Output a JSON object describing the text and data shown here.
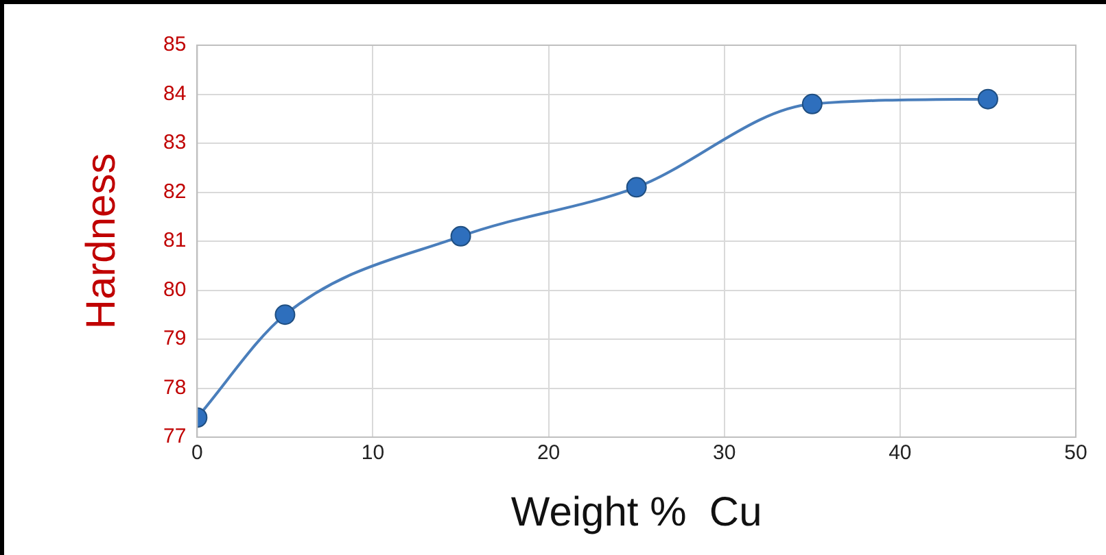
{
  "chart_data": {
    "type": "line",
    "xlabel": "Weight %  Cu",
    "ylabel": "Hardness",
    "x": [
      0,
      5,
      15,
      25,
      35,
      45
    ],
    "series": [
      {
        "color": "#4a7ebb",
        "values": [
          77.4,
          79.5,
          81.1,
          82.1,
          83.8,
          83.9
        ]
      }
    ],
    "xlim": [
      0,
      50
    ],
    "xticks": [
      0,
      10,
      20,
      30,
      40,
      50
    ],
    "ylim": [
      77,
      85
    ],
    "yticks": [
      77,
      78,
      79,
      80,
      81,
      82,
      83,
      84,
      85
    ],
    "grid": true,
    "legend": false,
    "marker": "circle",
    "line_style": "solid"
  }
}
